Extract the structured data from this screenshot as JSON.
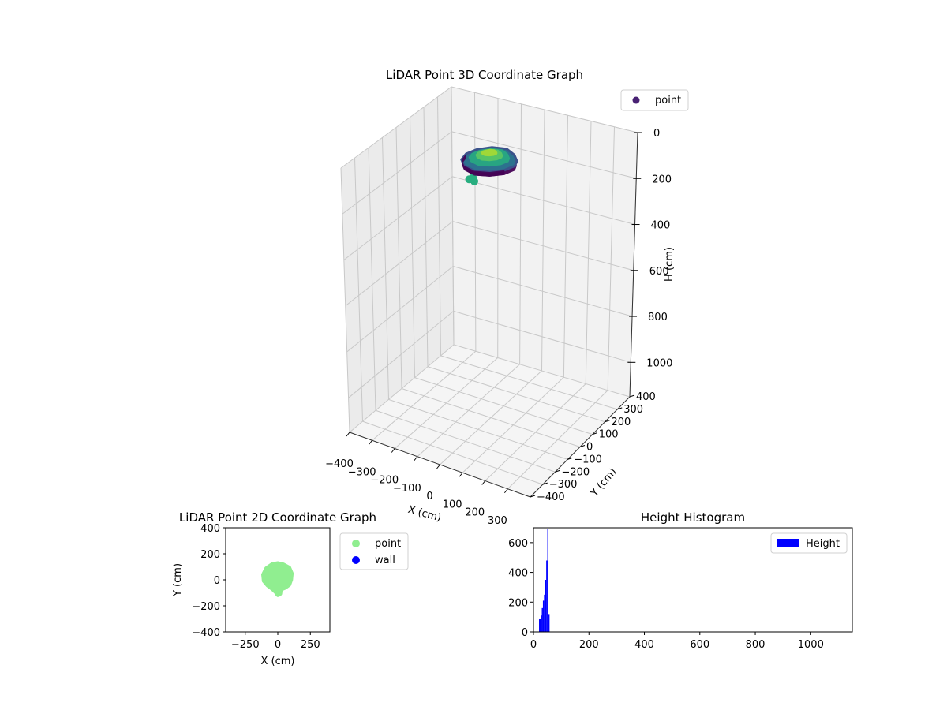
{
  "chart_data": [
    {
      "type": "scatter",
      "projection": "3d",
      "title": "LiDAR Point 3D Coordinate Graph",
      "xlabel": "X (cm)",
      "ylabel": "Y (cm)",
      "zlabel": "H (cm)",
      "xlim": [
        -400,
        400
      ],
      "ylim": [
        -400,
        400
      ],
      "zlim": [
        1150,
        0
      ],
      "z_inverted": true,
      "xticks": [
        "−400",
        "−300",
        "−200",
        "−100",
        "0",
        "100",
        "200",
        "300"
      ],
      "xtick_values": [
        -400,
        -300,
        -200,
        -100,
        0,
        100,
        200,
        300
      ],
      "yticks": [
        "−400",
        "−300",
        "−200",
        "−100",
        "0",
        "100",
        "200",
        "300",
        "400"
      ],
      "ytick_values": [
        -400,
        -300,
        -200,
        -100,
        0,
        100,
        200,
        300,
        400
      ],
      "zticks": [
        "0",
        "200",
        "400",
        "600",
        "800",
        "1000"
      ],
      "ztick_values": [
        0,
        200,
        400,
        600,
        800,
        1000
      ],
      "grid": true,
      "legend": {
        "placement": "upper-right",
        "entries": [
          {
            "label": "point",
            "color": "#482173"
          }
        ]
      },
      "colormap": "viridis",
      "series": [
        {
          "name": "point",
          "ring_outer": [
            [
              60,
              80,
              40
            ],
            [
              95,
              40,
              40
            ],
            [
              110,
              0,
              40
            ],
            [
              95,
              -50,
              40
            ],
            [
              55,
              -90,
              40
            ],
            [
              0,
              -110,
              40
            ],
            [
              -55,
              -90,
              40
            ],
            [
              -90,
              -50,
              40
            ],
            [
              -100,
              0,
              40
            ],
            [
              -85,
              50,
              40
            ],
            [
              -45,
              95,
              40
            ],
            [
              10,
              110,
              40
            ]
          ],
          "ring_lower": [
            [
              60,
              80,
              60
            ],
            [
              95,
              40,
              60
            ],
            [
              110,
              0,
              60
            ],
            [
              95,
              -50,
              60
            ],
            [
              55,
              -90,
              60
            ],
            [
              0,
              -110,
              60
            ],
            [
              -55,
              -90,
              60
            ],
            [
              -90,
              -50,
              60
            ],
            [
              -100,
              0,
              60
            ],
            [
              -85,
              50,
              60
            ],
            [
              -45,
              95,
              60
            ],
            [
              10,
              110,
              60
            ]
          ],
          "tail": [
            [
              0,
              -120,
              65
            ],
            [
              15,
              -135,
              70
            ],
            [
              -10,
              -130,
              70
            ]
          ]
        }
      ]
    },
    {
      "type": "scatter",
      "title": "LiDAR Point 2D Coordinate Graph",
      "xlabel": "X (cm)",
      "ylabel": "Y (cm)",
      "xlim": [
        -400,
        400
      ],
      "ylim": [
        -400,
        400
      ],
      "xticks": [
        "−250",
        "0",
        "250"
      ],
      "xtick_values": [
        -250,
        0,
        250
      ],
      "yticks": [
        "−400",
        "−200",
        "0",
        "200",
        "400"
      ],
      "ytick_values": [
        -400,
        -200,
        0,
        200,
        400
      ],
      "legend": {
        "placement": "outside-right",
        "entries": [
          {
            "label": "point",
            "color": "#90ee90"
          },
          {
            "label": "wall",
            "color": "#0000ff"
          }
        ]
      },
      "series": [
        {
          "name": "point",
          "color": "#90ee90",
          "outline": [
            [
              0,
              130
            ],
            [
              45,
              120
            ],
            [
              90,
              95
            ],
            [
              110,
              50
            ],
            [
              105,
              0
            ],
            [
              90,
              -40
            ],
            [
              55,
              -65
            ],
            [
              30,
              -75
            ],
            [
              15,
              -105
            ],
            [
              0,
              -120
            ],
            [
              -15,
              -100
            ],
            [
              -40,
              -75
            ],
            [
              -80,
              -45
            ],
            [
              -110,
              -10
            ],
            [
              -115,
              40
            ],
            [
              -90,
              90
            ],
            [
              -45,
              122
            ]
          ]
        },
        {
          "name": "wall",
          "color": "#0000ff",
          "points": []
        }
      ]
    },
    {
      "type": "bar",
      "title": "Height Histogram",
      "xlim": [
        0,
        1150
      ],
      "ylim": [
        0,
        700
      ],
      "xticks": [
        "0",
        "200",
        "400",
        "600",
        "800",
        "1000"
      ],
      "xtick_values": [
        0,
        200,
        400,
        600,
        800,
        1000
      ],
      "yticks": [
        "0",
        "200",
        "400",
        "600"
      ],
      "ytick_values": [
        0,
        200,
        400,
        600
      ],
      "legend": {
        "placement": "upper-right",
        "entries": [
          {
            "label": "Height",
            "color": "#0000ff"
          }
        ]
      },
      "series": [
        {
          "name": "Height",
          "color": "#0000ff",
          "bins": [
            {
              "x0": 20,
              "x1": 26,
              "value": 85
            },
            {
              "x0": 26,
              "x1": 30,
              "value": 110
            },
            {
              "x0": 30,
              "x1": 34,
              "value": 160
            },
            {
              "x0": 34,
              "x1": 38,
              "value": 210
            },
            {
              "x0": 38,
              "x1": 42,
              "value": 250
            },
            {
              "x0": 42,
              "x1": 46,
              "value": 350
            },
            {
              "x0": 46,
              "x1": 50,
              "value": 480
            },
            {
              "x0": 50,
              "x1": 54,
              "value": 690
            },
            {
              "x0": 54,
              "x1": 58,
              "value": 120
            }
          ]
        }
      ]
    }
  ]
}
